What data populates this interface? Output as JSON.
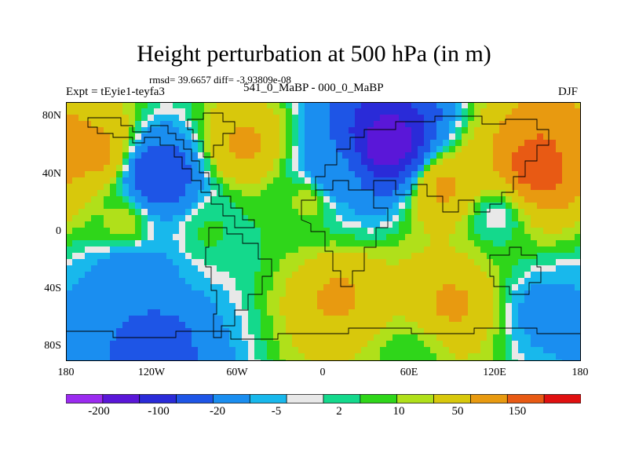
{
  "title": "Height perturbation at 500 hPa (in m)",
  "stats": "rmsd= 39.6657 diff= -3.93809e-08",
  "expt_label": "Expt = tEyie1-teyfa3",
  "subtitle": "541_0_MaBP - 000_0_MaBP",
  "season": "DJF",
  "y_ticks": [
    "80N",
    "40N",
    "0",
    "40S",
    "80S"
  ],
  "x_ticks": [
    "180",
    "120W",
    "60W",
    "0",
    "60E",
    "120E",
    "180"
  ],
  "colorbar": {
    "colors": [
      "#9b2bf0",
      "#5a17d8",
      "#2a2bd8",
      "#1e55e6",
      "#1a8ef0",
      "#18b8ec",
      "#e8e8e8",
      "#14d98c",
      "#2fd61a",
      "#b0e01a",
      "#d8c80c",
      "#e89a10",
      "#e85a14",
      "#e01010"
    ],
    "labels": [
      "-200",
      "-100",
      "-20",
      "-5",
      "2",
      "10",
      "50",
      "150"
    ]
  },
  "chart_data": {
    "type": "heatmap",
    "title": "Height perturbation at 500 hPa (in m)",
    "subtitle": "541_0_MaBP - 000_0_MaBP",
    "xlim": [
      -180,
      180
    ],
    "ylim": [
      -90,
      90
    ],
    "levels": [
      -200,
      -100,
      -20,
      -5,
      2,
      10,
      50,
      150
    ],
    "features": [
      {
        "lon": -160,
        "lat": 55,
        "value": 60
      },
      {
        "lon": -115,
        "lat": 38,
        "value": -95
      },
      {
        "lon": -55,
        "lat": 60,
        "value": 55
      },
      {
        "lon": 45,
        "lat": 60,
        "value": -190
      },
      {
        "lon": 5,
        "lat": 38,
        "value": -40
      },
      {
        "lon": 150,
        "lat": 45,
        "value": 130
      },
      {
        "lon": 85,
        "lat": 30,
        "value": 55
      },
      {
        "lon": -10,
        "lat": 22,
        "value": 15
      },
      {
        "lon": 120,
        "lat": 10,
        "value": -8
      },
      {
        "lon": -140,
        "lat": 5,
        "value": 15
      },
      {
        "lon": -80,
        "lat": 0,
        "value": 3
      },
      {
        "lon": -135,
        "lat": -30,
        "value": -45
      },
      {
        "lon": -120,
        "lat": -80,
        "value": -70
      },
      {
        "lon": 10,
        "lat": -45,
        "value": 55
      },
      {
        "lon": 90,
        "lat": -50,
        "value": 55
      },
      {
        "lon": 155,
        "lat": -55,
        "value": -30
      },
      {
        "lon": 60,
        "lat": -85,
        "value": 5
      }
    ]
  }
}
